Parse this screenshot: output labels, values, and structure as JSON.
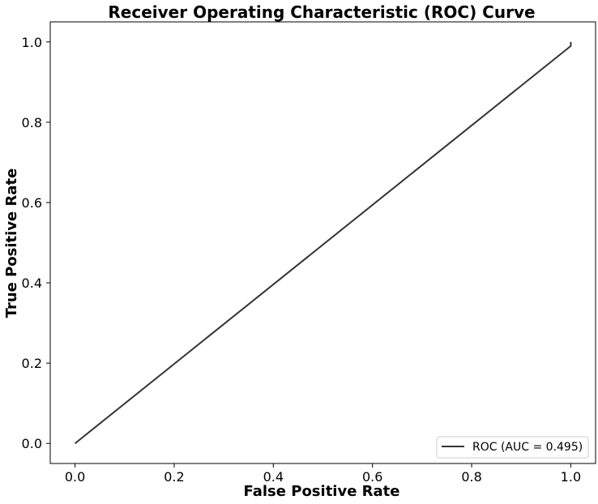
{
  "chart_data": {
    "type": "line",
    "title": "Receiver Operating Characteristic (ROC) Curve",
    "xlabel": "False Positive Rate",
    "ylabel": "True Positive Rate",
    "xlim": [
      -0.05,
      1.05
    ],
    "ylim": [
      -0.05,
      1.05
    ],
    "x_ticks": [
      "0.0",
      "0.2",
      "0.4",
      "0.6",
      "0.8",
      "1.0"
    ],
    "y_ticks": [
      "0.0",
      "0.2",
      "0.4",
      "0.6",
      "0.8",
      "1.0"
    ],
    "grid": false,
    "legend_position": "lower-right",
    "series": [
      {
        "name": "ROC (AUC = 0.495)",
        "color": "#333333",
        "x": [
          0.0,
          1.0,
          1.0
        ],
        "y": [
          0.0,
          0.99,
          1.0
        ]
      }
    ]
  }
}
